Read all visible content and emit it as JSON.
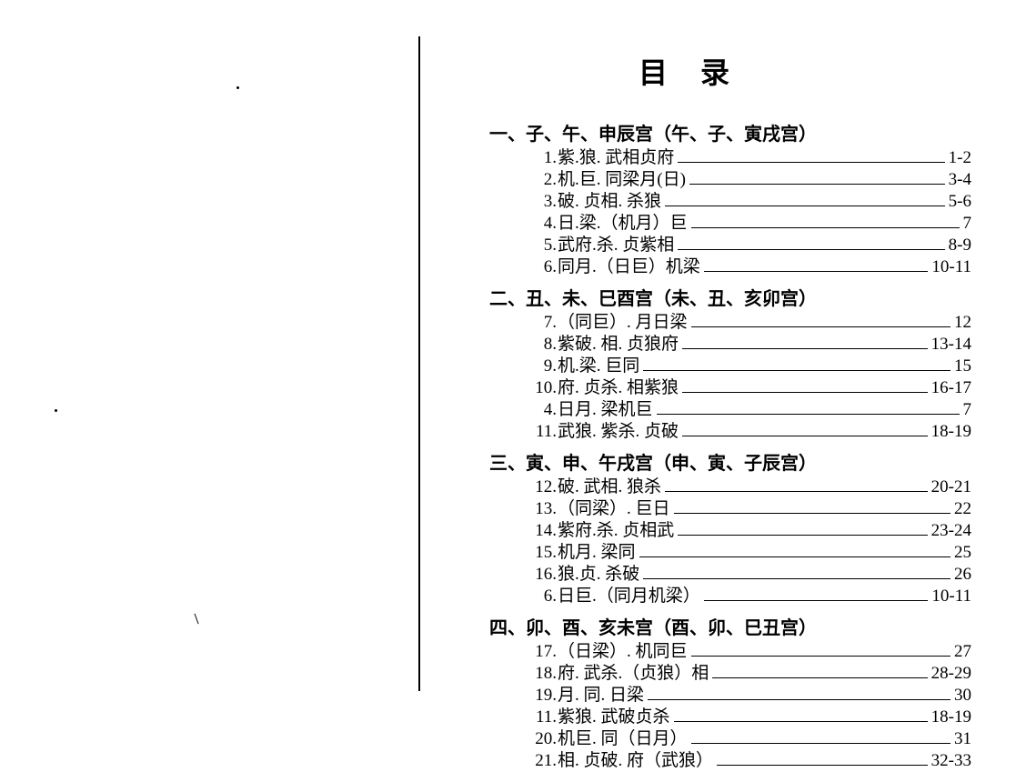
{
  "title": "目录",
  "title_fontsize": 32,
  "body_fontsize": 19,
  "heading_fontsize": 20,
  "text_color": "#000000",
  "background_color": "#ffffff",
  "leader_color": "#000000",
  "sections": [
    {
      "heading": "一、子、午、申辰宫（午、子、寅戌宫）",
      "entries": [
        {
          "num": "1.",
          "label": "紫.狼. 武相贞府",
          "page": "1-2"
        },
        {
          "num": "2.",
          "label": "机.巨. 同梁月(日)",
          "page": "3-4"
        },
        {
          "num": "3.",
          "label": "破. 贞相. 杀狼",
          "page": "5-6"
        },
        {
          "num": "4.",
          "label": "日.梁.（机月）巨",
          "page": "7"
        },
        {
          "num": "5.",
          "label": "武府.杀. 贞紫相",
          "page": "8-9"
        },
        {
          "num": "6.",
          "label": "同月.（日巨）机梁",
          "page": "10-11"
        }
      ]
    },
    {
      "heading": "二、丑、未、巳酉宫（未、丑、亥卯宫）",
      "entries": [
        {
          "num": "7.",
          "label": "（同巨）. 月日梁",
          "page": "12"
        },
        {
          "num": "8.",
          "label": "紫破. 相. 贞狼府",
          "page": "13-14"
        },
        {
          "num": "9.",
          "label": "机.梁. 巨同",
          "page": "15"
        },
        {
          "num": "10.",
          "label": "府. 贞杀. 相紫狼",
          "page": "16-17"
        },
        {
          "num": "4.",
          "label": "日月. 梁机巨",
          "page": "7"
        },
        {
          "num": "11.",
          "label": "武狼. 紫杀. 贞破",
          "page": "18-19"
        }
      ]
    },
    {
      "heading": "三、寅、申、午戌宫（申、寅、子辰宫）",
      "entries": [
        {
          "num": "12.",
          "label": "破. 武相. 狼杀",
          "page": "20-21"
        },
        {
          "num": "13.",
          "label": "（同梁）. 巨日",
          "page": "22"
        },
        {
          "num": "14.",
          "label": "紫府.杀. 贞相武",
          "page": "23-24"
        },
        {
          "num": "15.",
          "label": "机月. 梁同",
          "page": "25"
        },
        {
          "num": "16.",
          "label": "狼.贞. 杀破",
          "page": "26"
        },
        {
          "num": "6.",
          "label": "日巨.（同月机梁）",
          "page": "10-11"
        }
      ]
    },
    {
      "heading": "四、卯、酉、亥未宫（酉、卯、巳丑宫）",
      "entries": [
        {
          "num": "17.",
          "label": "（日梁）. 机同巨",
          "page": "27"
        },
        {
          "num": "18.",
          "label": "府. 武杀.（贞狼）相",
          "page": "28-29"
        },
        {
          "num": "19.",
          "label": "月. 同. 日梁",
          "page": "30"
        },
        {
          "num": "11.",
          "label": "紫狼. 武破贞杀",
          "page": "18-19"
        },
        {
          "num": "20.",
          "label": "机巨. 同（日月）",
          "page": "31"
        },
        {
          "num": "21.",
          "label": "相. 贞破. 府（武狼）",
          "page": "32-33"
        }
      ]
    }
  ]
}
